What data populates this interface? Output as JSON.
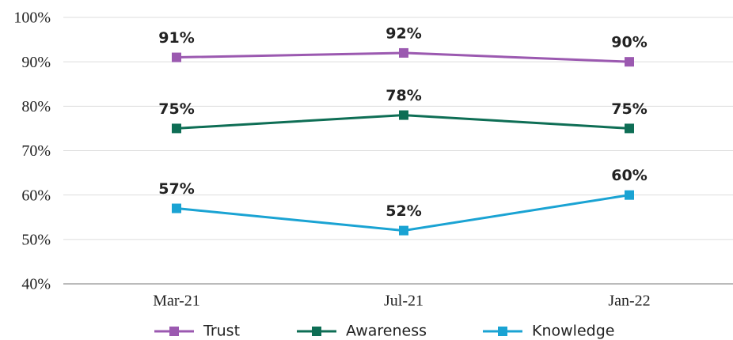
{
  "chart_data": {
    "type": "line",
    "categories": [
      "Mar-21",
      "Jul-21",
      "Jan-22"
    ],
    "series": [
      {
        "name": "Trust",
        "color": "#9b59b0",
        "values": [
          91,
          92,
          90
        ],
        "value_labels": [
          "91%",
          "92%",
          "90%"
        ]
      },
      {
        "name": "Awareness",
        "color": "#0e6e55",
        "values": [
          75,
          78,
          75
        ],
        "value_labels": [
          "75%",
          "78%",
          "75%"
        ]
      },
      {
        "name": "Knowledge",
        "color": "#1aa3d3",
        "values": [
          57,
          52,
          60
        ],
        "value_labels": [
          "57%",
          "52%",
          "60%"
        ]
      }
    ],
    "ylim": [
      40,
      100
    ],
    "yticks": [
      {
        "value": 40,
        "label": "40%"
      },
      {
        "value": 50,
        "label": "50%"
      },
      {
        "value": 60,
        "label": "60%"
      },
      {
        "value": 70,
        "label": "70%"
      },
      {
        "value": 80,
        "label": "80%"
      },
      {
        "value": 90,
        "label": "90%"
      },
      {
        "value": 100,
        "label": "100%"
      }
    ],
    "grid": true,
    "legend": "bottom"
  }
}
